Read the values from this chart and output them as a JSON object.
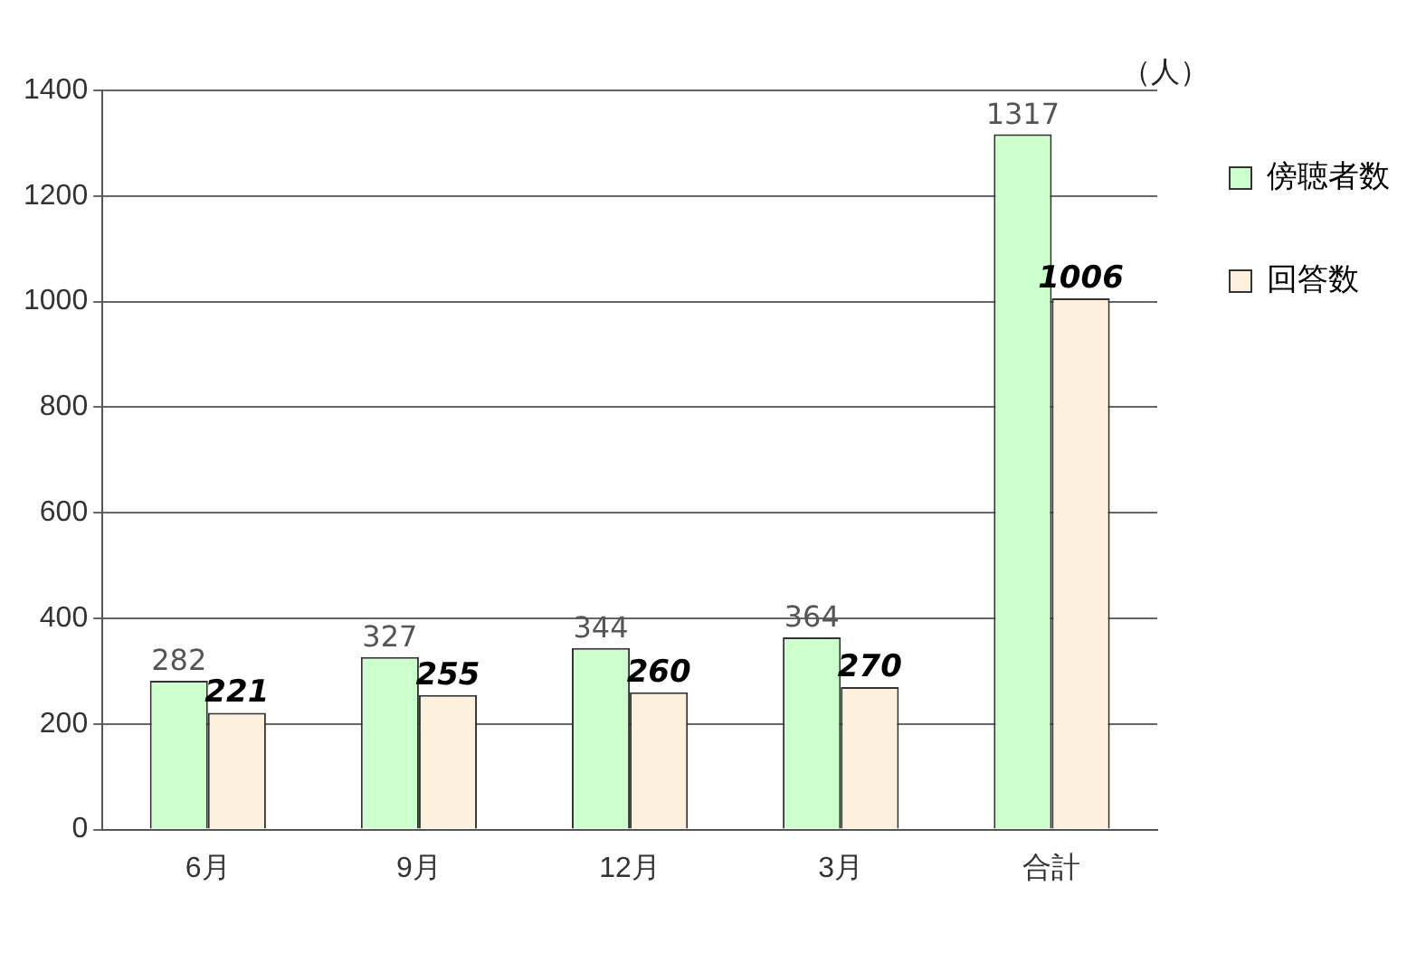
{
  "chart_data": {
    "type": "bar",
    "categories": [
      "6月",
      "9月",
      "12月",
      "3月",
      "合計"
    ],
    "series": [
      {
        "name": "傍聴者数",
        "color": "#ccffcc",
        "values": [
          282,
          327,
          344,
          364,
          1317
        ]
      },
      {
        "name": "回答数",
        "color": "#fdf0dc",
        "values": [
          221,
          255,
          260,
          270,
          1006
        ]
      }
    ],
    "ylim": [
      0,
      1400
    ],
    "yticks": [
      0,
      200,
      400,
      600,
      800,
      1000,
      1200,
      1400
    ],
    "grid": "y",
    "legend": "top right",
    "data_labels": true,
    "annotations": [
      "（人）"
    ]
  }
}
